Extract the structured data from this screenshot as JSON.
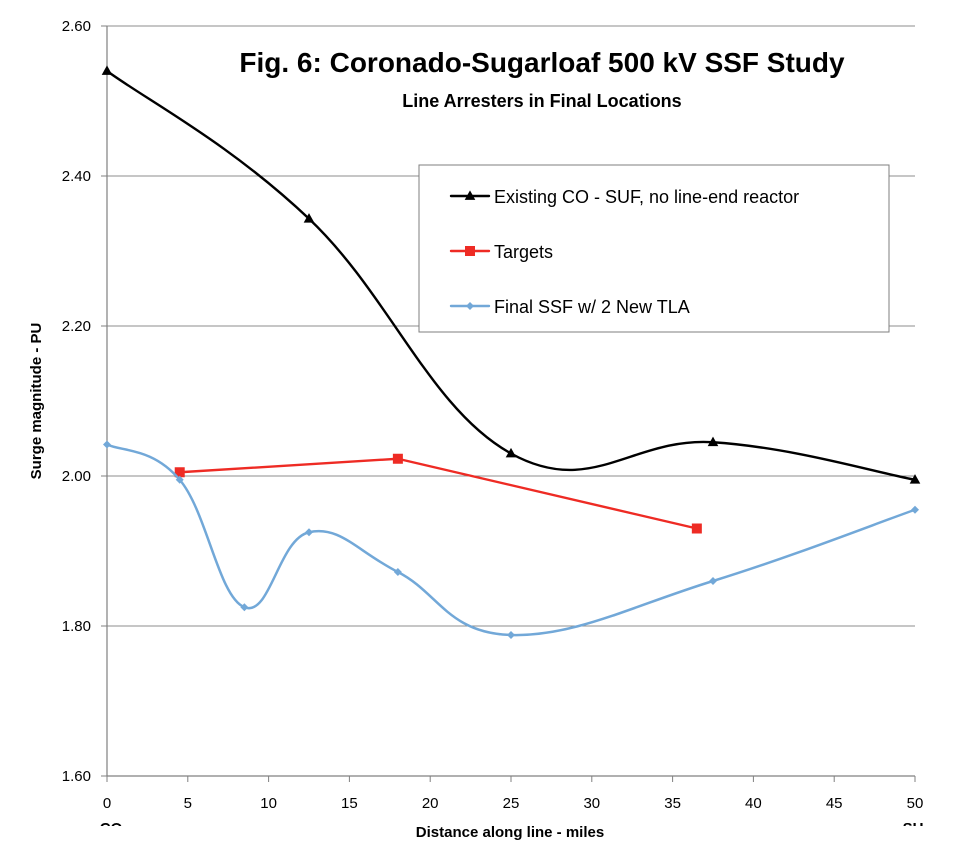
{
  "chart_data": {
    "type": "line",
    "title": "Fig. 6: Coronado-Sugarloaf 500 kV SSF Study",
    "subtitle": "Line Arresters in Final Locations",
    "xlabel": "Distance along line - miles",
    "ylabel": "Surge magnitude - PU",
    "xlim": [
      0,
      50
    ],
    "ylim": [
      1.6,
      2.6
    ],
    "x_ticks": [
      "0",
      "5",
      "10",
      "15",
      "20",
      "25",
      "30",
      "35",
      "40",
      "45",
      "50"
    ],
    "y_ticks": [
      "1.60",
      "1.80",
      "2.00",
      "2.20",
      "2.40",
      "2.60"
    ],
    "end_labels": {
      "left": "CO",
      "right": "SU"
    },
    "grid": "horizontal",
    "legend_position": "top-right",
    "series": [
      {
        "name": "Existing CO - SUF, no line-end reactor",
        "color": "#000000",
        "marker": "triangle",
        "points": [
          {
            "x": 0,
            "y": 2.54
          },
          {
            "x": 12.5,
            "y": 2.343
          },
          {
            "x": 25,
            "y": 2.03
          },
          {
            "x": 37.5,
            "y": 2.045
          },
          {
            "x": 50,
            "y": 1.995
          }
        ]
      },
      {
        "name": "Targets",
        "color": "#ee2b24",
        "marker": "square",
        "points": [
          {
            "x": 4.5,
            "y": 2.005
          },
          {
            "x": 18,
            "y": 2.023
          },
          {
            "x": 36.5,
            "y": 1.93
          }
        ]
      },
      {
        "name": "Final  SSF w/ 2 New TLA",
        "color": "#72a8d8",
        "marker": "diamond",
        "points": [
          {
            "x": 0,
            "y": 2.042
          },
          {
            "x": 4.5,
            "y": 1.995
          },
          {
            "x": 8.5,
            "y": 1.825
          },
          {
            "x": 12.5,
            "y": 1.925
          },
          {
            "x": 18,
            "y": 1.872
          },
          {
            "x": 25,
            "y": 1.788
          },
          {
            "x": 37.5,
            "y": 1.86
          },
          {
            "x": 50,
            "y": 1.955
          }
        ]
      }
    ]
  }
}
